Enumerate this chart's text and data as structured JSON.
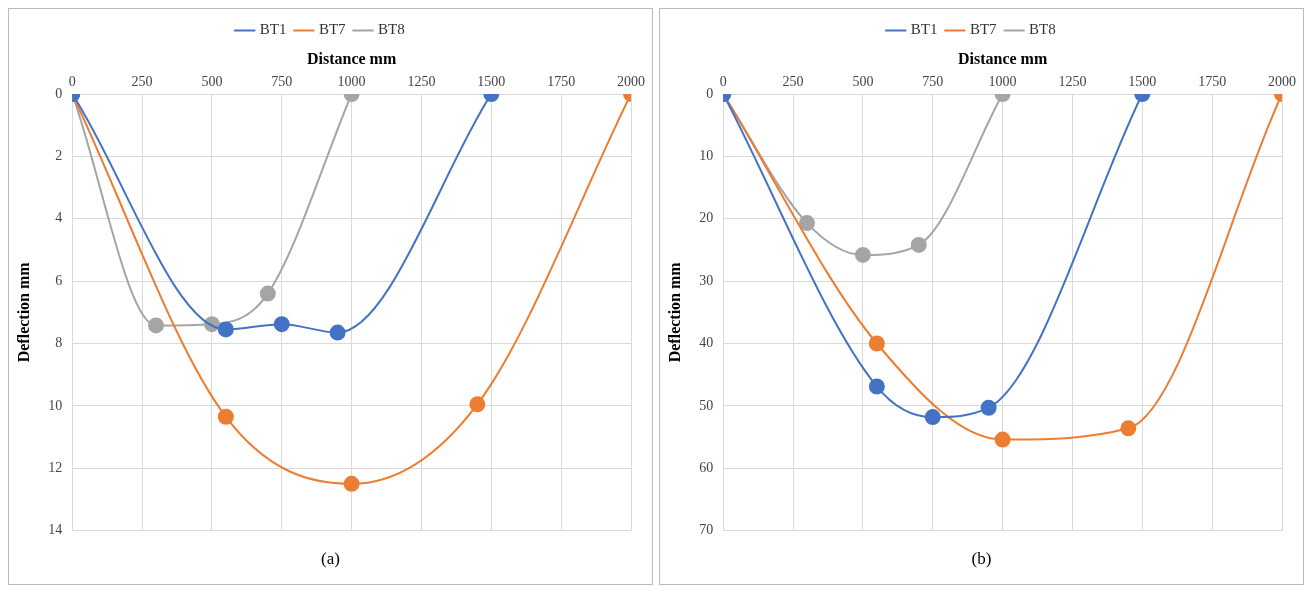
{
  "chart_data": [
    {
      "type": "line",
      "xlabel": "Distance mm",
      "ylabel": "Deflection mm",
      "xlim": [
        0,
        2000
      ],
      "xticks": [
        0,
        250,
        500,
        750,
        1000,
        1250,
        1500,
        1750,
        2000
      ],
      "ylim": [
        14,
        0
      ],
      "yticks": [
        0,
        2,
        4,
        6,
        8,
        10,
        12,
        14
      ],
      "grid": true,
      "legend": "top",
      "marker": "circle",
      "annotations": [
        "(a)"
      ],
      "series": [
        {
          "name": "BT1",
          "color": "#4472c4",
          "x": [
            0,
            550,
            750,
            950,
            1500
          ],
          "values": [
            0,
            7.55,
            7.38,
            7.65,
            0
          ]
        },
        {
          "name": "BT7",
          "color": "#ed7d31",
          "x": [
            0,
            550,
            1000,
            1450,
            2000
          ],
          "values": [
            0,
            10.35,
            12.5,
            9.95,
            0
          ]
        },
        {
          "name": "BT8",
          "color": "#a5a5a5",
          "x": [
            0,
            300,
            500,
            700,
            1000
          ],
          "values": [
            0,
            7.42,
            7.38,
            6.4,
            0
          ]
        }
      ]
    },
    {
      "type": "line",
      "xlabel": "Distance mm",
      "ylabel": "Deflection mm",
      "xlim": [
        0,
        2000
      ],
      "xticks": [
        0,
        250,
        500,
        750,
        1000,
        1250,
        1500,
        1750,
        2000
      ],
      "ylim": [
        70,
        0
      ],
      "yticks": [
        0,
        10,
        20,
        30,
        40,
        50,
        60,
        70
      ],
      "grid": true,
      "legend": "top",
      "marker": "circle",
      "annotations": [
        "(b)"
      ],
      "series": [
        {
          "name": "BT1",
          "color": "#4472c4",
          "x": [
            0,
            550,
            750,
            950,
            1500
          ],
          "values": [
            0,
            46.9,
            51.8,
            50.3,
            0
          ]
        },
        {
          "name": "BT7",
          "color": "#ed7d31",
          "x": [
            0,
            550,
            1000,
            1450,
            2000
          ],
          "values": [
            0,
            40,
            55.4,
            53.6,
            0
          ]
        },
        {
          "name": "BT8",
          "color": "#a5a5a5",
          "x": [
            0,
            300,
            500,
            700,
            1000
          ],
          "values": [
            0,
            20.7,
            25.8,
            24.2,
            0
          ]
        }
      ]
    }
  ]
}
